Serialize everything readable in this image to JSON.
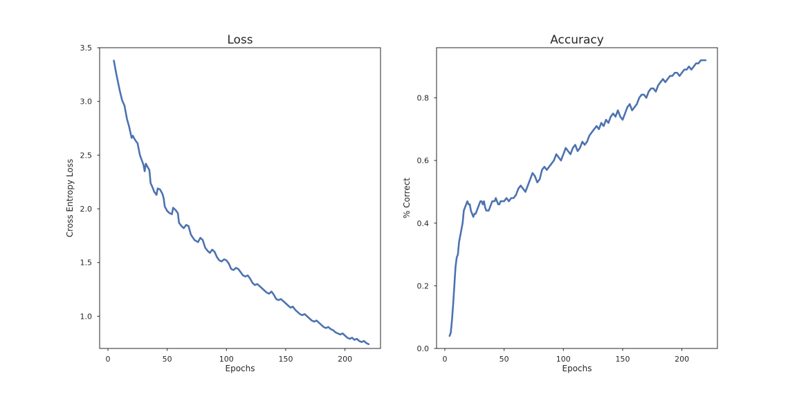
{
  "chart_data": [
    {
      "type": "line",
      "title": "Loss",
      "xlabel": "Epochs",
      "ylabel": "Cross Entropy Loss",
      "xlim": [
        -7,
        230
      ],
      "ylim": [
        0.7,
        3.5
      ],
      "xticks": [
        0,
        50,
        100,
        150,
        200
      ],
      "xtick_labels": [
        "0",
        "50",
        "100",
        "150",
        "200"
      ],
      "yticks": [
        1.0,
        1.5,
        2.0,
        2.5,
        3.0,
        3.5
      ],
      "ytick_labels": [
        "1.0",
        "1.5",
        "2.0",
        "2.5",
        "3.0",
        "3.5"
      ],
      "grid": false,
      "series": [
        {
          "color": "#4c72b0",
          "x": [
            5,
            7,
            10,
            12,
            14,
            16,
            18,
            20,
            21,
            23,
            25,
            27,
            28,
            30,
            31,
            32,
            35,
            36,
            38,
            39,
            41,
            42,
            44,
            46,
            47,
            48,
            50,
            52,
            54,
            55,
            57,
            59,
            60,
            62,
            64,
            66,
            68,
            70,
            73,
            76,
            78,
            80,
            82,
            84,
            86,
            88,
            90,
            92,
            94,
            96,
            98,
            100,
            102,
            104,
            106,
            108,
            110,
            112,
            114,
            116,
            118,
            120,
            122,
            124,
            126,
            128,
            130,
            132,
            134,
            136,
            138,
            140,
            142,
            144,
            146,
            148,
            150,
            152,
            154,
            156,
            158,
            160,
            162,
            164,
            166,
            168,
            170,
            172,
            174,
            176,
            178,
            180,
            182,
            184,
            186,
            188,
            190,
            192,
            194,
            196,
            198,
            200,
            202,
            204,
            206,
            208,
            210,
            212,
            214,
            216,
            218,
            220
          ],
          "y": [
            3.38,
            3.26,
            3.1,
            3.01,
            2.96,
            2.84,
            2.76,
            2.66,
            2.68,
            2.64,
            2.61,
            2.5,
            2.47,
            2.41,
            2.35,
            2.42,
            2.36,
            2.24,
            2.19,
            2.16,
            2.13,
            2.19,
            2.18,
            2.14,
            2.1,
            2.02,
            1.98,
            1.96,
            1.95,
            2.01,
            1.99,
            1.96,
            1.87,
            1.84,
            1.82,
            1.85,
            1.84,
            1.76,
            1.71,
            1.69,
            1.73,
            1.71,
            1.64,
            1.61,
            1.59,
            1.62,
            1.6,
            1.55,
            1.52,
            1.51,
            1.53,
            1.52,
            1.49,
            1.44,
            1.43,
            1.45,
            1.44,
            1.41,
            1.38,
            1.37,
            1.38,
            1.35,
            1.31,
            1.29,
            1.3,
            1.28,
            1.26,
            1.24,
            1.22,
            1.21,
            1.23,
            1.2,
            1.16,
            1.15,
            1.16,
            1.14,
            1.12,
            1.1,
            1.08,
            1.09,
            1.06,
            1.04,
            1.02,
            1.01,
            1.02,
            1.0,
            0.98,
            0.96,
            0.95,
            0.96,
            0.94,
            0.92,
            0.9,
            0.89,
            0.9,
            0.88,
            0.87,
            0.85,
            0.84,
            0.83,
            0.84,
            0.82,
            0.8,
            0.79,
            0.8,
            0.78,
            0.79,
            0.77,
            0.76,
            0.77,
            0.75,
            0.74
          ]
        }
      ]
    },
    {
      "type": "line",
      "title": "Accuracy",
      "xlabel": "Epochs",
      "ylabel": "% Correct",
      "xlim": [
        -7,
        230
      ],
      "ylim": [
        0.0,
        0.96
      ],
      "xticks": [
        0,
        50,
        100,
        150,
        200
      ],
      "xtick_labels": [
        "0",
        "50",
        "100",
        "150",
        "200"
      ],
      "yticks": [
        0.0,
        0.2,
        0.4,
        0.6,
        0.8
      ],
      "ytick_labels": [
        "0.0",
        "0.2",
        "0.4",
        "0.6",
        "0.8"
      ],
      "grid": false,
      "series": [
        {
          "color": "#4c72b0",
          "x": [
            4,
            5,
            6,
            7,
            8,
            9,
            10,
            11,
            12,
            13,
            14,
            15,
            16,
            17,
            18,
            19,
            20,
            21,
            22,
            23,
            24,
            25,
            26,
            27,
            28,
            29,
            30,
            31,
            32,
            33,
            34,
            35,
            36,
            37,
            38,
            39,
            40,
            41,
            42,
            43,
            44,
            45,
            46,
            47,
            48,
            50,
            52,
            54,
            56,
            58,
            60,
            62,
            64,
            66,
            68,
            70,
            72,
            74,
            76,
            78,
            80,
            82,
            84,
            86,
            88,
            90,
            92,
            94,
            96,
            98,
            100,
            102,
            104,
            106,
            108,
            110,
            112,
            114,
            116,
            118,
            120,
            122,
            124,
            126,
            128,
            130,
            132,
            134,
            136,
            138,
            140,
            142,
            144,
            146,
            148,
            150,
            152,
            154,
            156,
            158,
            160,
            162,
            164,
            166,
            168,
            170,
            172,
            174,
            176,
            178,
            180,
            182,
            184,
            186,
            188,
            190,
            192,
            194,
            196,
            198,
            200,
            202,
            204,
            206,
            208,
            210,
            212,
            214,
            216,
            218,
            220
          ],
          "y": [
            0.04,
            0.05,
            0.09,
            0.14,
            0.2,
            0.26,
            0.29,
            0.3,
            0.34,
            0.36,
            0.38,
            0.4,
            0.44,
            0.45,
            0.46,
            0.47,
            0.46,
            0.46,
            0.44,
            0.43,
            0.42,
            0.43,
            0.43,
            0.44,
            0.45,
            0.46,
            0.47,
            0.47,
            0.46,
            0.47,
            0.45,
            0.44,
            0.44,
            0.44,
            0.45,
            0.46,
            0.47,
            0.47,
            0.47,
            0.48,
            0.47,
            0.46,
            0.46,
            0.47,
            0.47,
            0.47,
            0.48,
            0.47,
            0.48,
            0.48,
            0.49,
            0.51,
            0.52,
            0.51,
            0.5,
            0.52,
            0.54,
            0.56,
            0.55,
            0.53,
            0.54,
            0.57,
            0.58,
            0.57,
            0.58,
            0.59,
            0.6,
            0.62,
            0.61,
            0.6,
            0.62,
            0.64,
            0.63,
            0.62,
            0.64,
            0.65,
            0.63,
            0.64,
            0.66,
            0.65,
            0.66,
            0.68,
            0.69,
            0.7,
            0.71,
            0.7,
            0.72,
            0.71,
            0.73,
            0.72,
            0.74,
            0.75,
            0.74,
            0.76,
            0.74,
            0.73,
            0.75,
            0.77,
            0.78,
            0.76,
            0.77,
            0.78,
            0.8,
            0.81,
            0.81,
            0.8,
            0.82,
            0.83,
            0.83,
            0.82,
            0.84,
            0.85,
            0.86,
            0.85,
            0.86,
            0.87,
            0.87,
            0.88,
            0.88,
            0.87,
            0.88,
            0.89,
            0.89,
            0.9,
            0.89,
            0.9,
            0.91,
            0.91,
            0.92,
            0.92,
            0.92
          ]
        }
      ]
    }
  ]
}
